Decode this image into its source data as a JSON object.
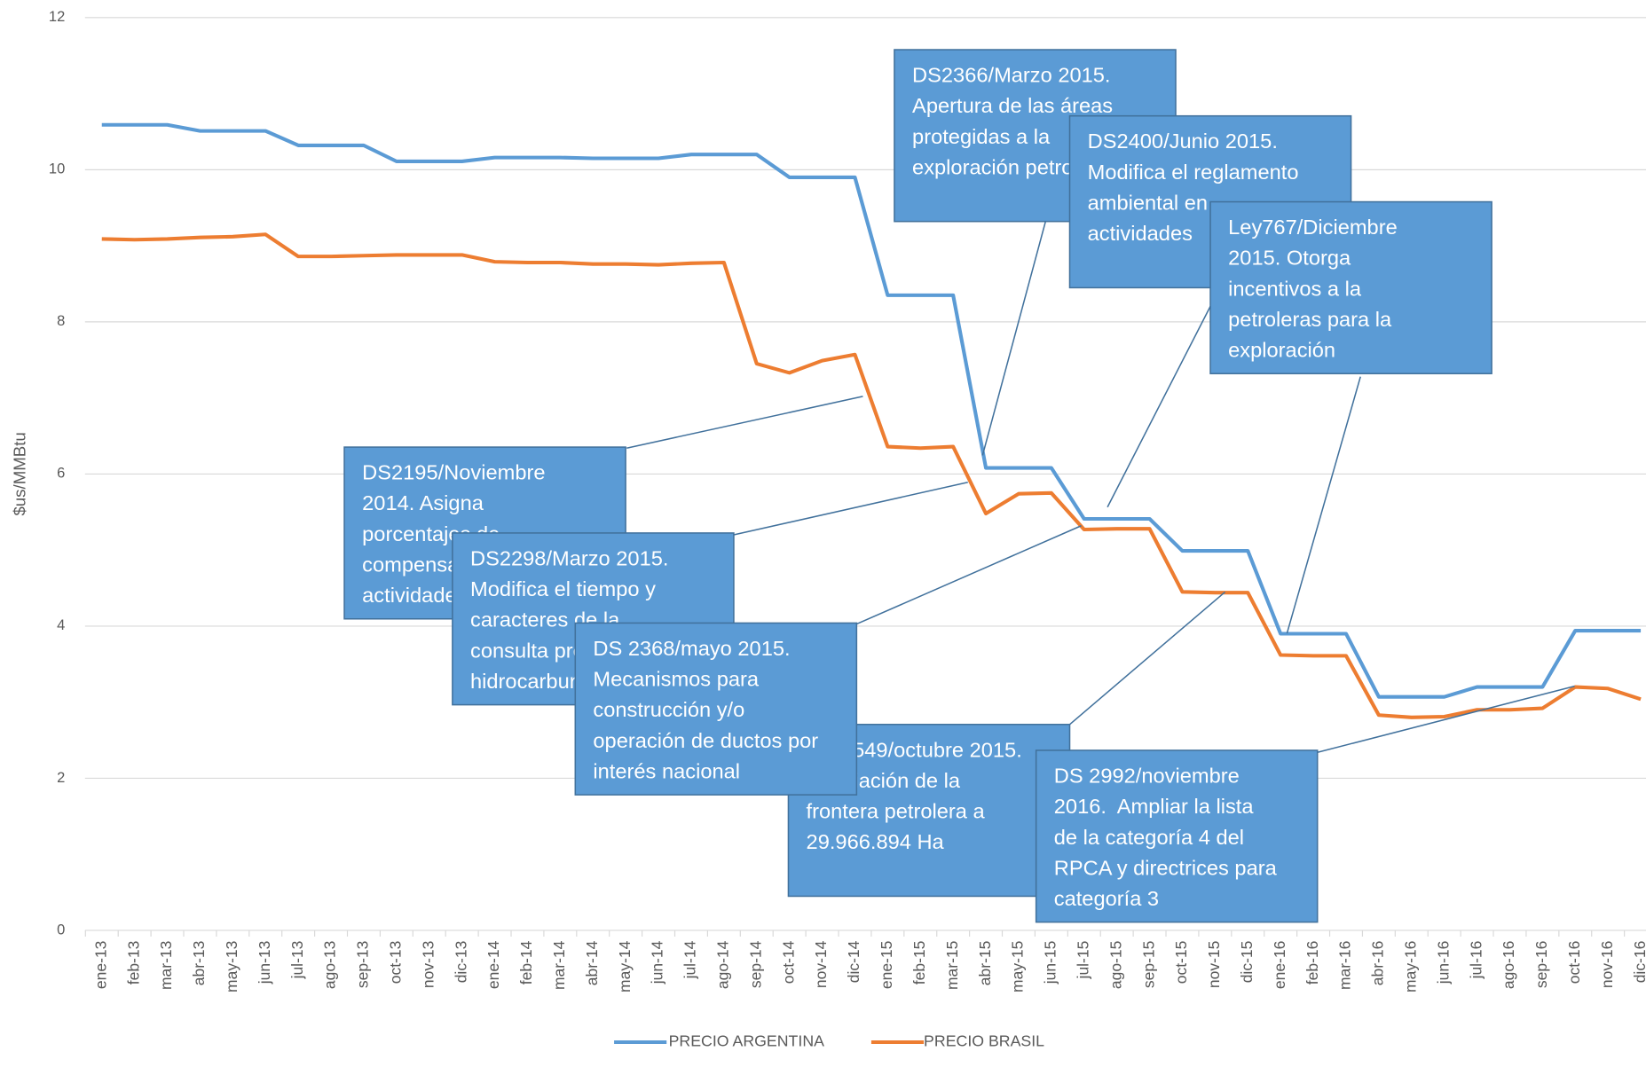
{
  "chart_data": {
    "type": "line",
    "y_label": "$us/MMBtu",
    "categories": [
      "ene-13",
      "feb-13",
      "mar-13",
      "abr-13",
      "may-13",
      "jun-13",
      "jul-13",
      "ago-13",
      "sep-13",
      "oct-13",
      "nov-13",
      "dic-13",
      "ene-14",
      "feb-14",
      "mar-14",
      "abr-14",
      "may-14",
      "jun-14",
      "jul-14",
      "ago-14",
      "sep-14",
      "oct-14",
      "nov-14",
      "dic-14",
      "ene-15",
      "feb-15",
      "mar-15",
      "abr-15",
      "may-15",
      "jun-15",
      "jul-15",
      "ago-15",
      "sep-15",
      "oct-15",
      "nov-15",
      "dic-15",
      "ene-16",
      "feb-16",
      "mar-16",
      "abr-16",
      "may-16",
      "jun-16",
      "jul-16",
      "ago-16",
      "sep-16",
      "oct-16",
      "nov-16",
      "dic-16"
    ],
    "series": [
      {
        "name": "PRECIO ARGENTINA",
        "color": "#5b9bd5",
        "values": [
          10.59,
          10.59,
          10.59,
          10.51,
          10.51,
          10.51,
          10.32,
          10.32,
          10.32,
          10.11,
          10.11,
          10.11,
          10.16,
          10.16,
          10.16,
          10.15,
          10.15,
          10.15,
          10.2,
          10.2,
          10.2,
          9.9,
          9.9,
          9.9,
          8.35,
          8.35,
          8.35,
          6.08,
          6.08,
          6.08,
          5.41,
          5.41,
          5.41,
          4.99,
          4.99,
          4.99,
          3.9,
          3.9,
          3.9,
          3.07,
          3.07,
          3.07,
          3.2,
          3.2,
          3.2,
          3.94,
          3.94,
          3.94
        ]
      },
      {
        "name": "PRECIO BRASIL",
        "color": "#ed7d31",
        "values": [
          9.09,
          9.08,
          9.09,
          9.11,
          9.12,
          9.15,
          8.86,
          8.86,
          8.87,
          8.88,
          8.88,
          8.88,
          8.79,
          8.78,
          8.78,
          8.76,
          8.76,
          8.75,
          8.77,
          8.78,
          7.45,
          7.33,
          7.49,
          7.57,
          6.36,
          6.34,
          6.36,
          5.48,
          5.74,
          5.75,
          5.27,
          5.28,
          5.28,
          4.45,
          4.44,
          4.44,
          3.62,
          3.61,
          3.61,
          2.83,
          2.8,
          2.81,
          2.9,
          2.9,
          2.92,
          3.2,
          3.18,
          3.04
        ]
      }
    ],
    "ylim": [
      0,
      12
    ],
    "yticks": [
      0,
      2,
      4,
      6,
      8,
      10,
      12
    ],
    "grid": true,
    "legend": "bottom",
    "annotations": [
      {
        "lines": [
          "DS2195/Noviembre",
          "2014. Asigna",
          "porcentajes de",
          "compensación por",
          "actividades"
        ]
      },
      {
        "lines": [
          "DS2298/Marzo 2015.",
          "Modifica el tiempo y",
          "caracteres de la",
          "consulta previa en",
          "hidrocarburos"
        ]
      },
      {
        "lines": [
          "DS 2549/octubre 2015.",
          "Ampliación de la",
          "frontera petrolera a",
          "29.966.894 Ha"
        ]
      },
      {
        "lines": [
          "DS 2368/mayo 2015.",
          "Mecanismos para",
          "construcción y/o",
          "operación de ductos por",
          "interés nacional"
        ]
      },
      {
        "lines": [
          "DS 2992/noviembre",
          "2016.  Ampliar la lista",
          "de la categoría 4 del",
          "RPCA y directrices para",
          "categoría 3"
        ]
      },
      {
        "lines": [
          "DS2366/Marzo 2015.",
          "Apertura de las áreas",
          "protegidas a la",
          "exploración petrolera"
        ]
      },
      {
        "lines": [
          "DS2400/Junio 2015.",
          "Modifica el reglamento",
          "ambiental en",
          "actividades"
        ]
      },
      {
        "lines": [
          "Ley767/Diciembre",
          "2015. Otorga",
          "incentivos a la",
          "petroleras para la",
          "exploración"
        ]
      }
    ]
  }
}
